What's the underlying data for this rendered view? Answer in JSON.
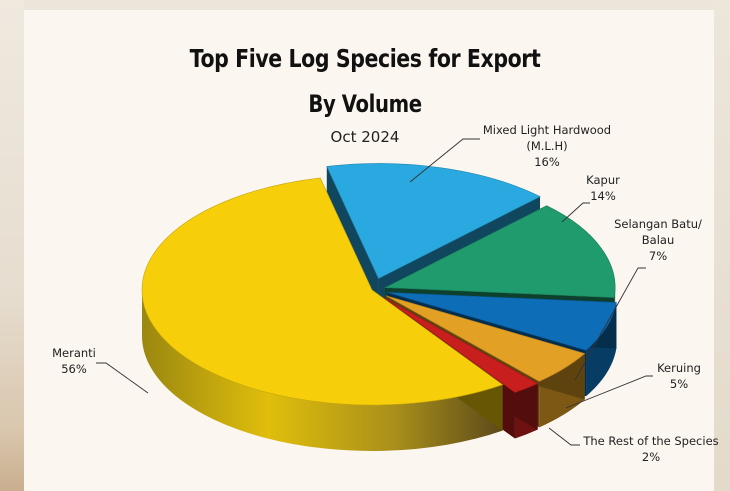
{
  "chart_data": {
    "type": "pie",
    "title": "Top Five Log Species for Export",
    "title_line2": "By Volume",
    "subtitle": "Oct 2024",
    "slices": [
      {
        "label": "Mixed Light Hardwood",
        "label_sub": "(M.L.H)",
        "pct_text": "16%",
        "value": 16,
        "color": "#29a9df"
      },
      {
        "label": "Kapur",
        "label_sub": "",
        "pct_text": "14%",
        "value": 14,
        "color": "#1f9b6e"
      },
      {
        "label": "Selangan Batu/",
        "label_sub": "Balau",
        "pct_text": "7%",
        "value": 7,
        "color": "#0d6db7"
      },
      {
        "label": "Keruing",
        "label_sub": "",
        "pct_text": "5%",
        "value": 5,
        "color": "#e2a024"
      },
      {
        "label": "The Rest of the Species",
        "label_sub": "",
        "pct_text": "2%",
        "value": 2,
        "color": "#c81e1e"
      },
      {
        "label": "Meranti",
        "label_sub": "",
        "pct_text": "56%",
        "value": 56,
        "color": "#f6cf0a"
      }
    ],
    "style": "3d-exploded"
  }
}
